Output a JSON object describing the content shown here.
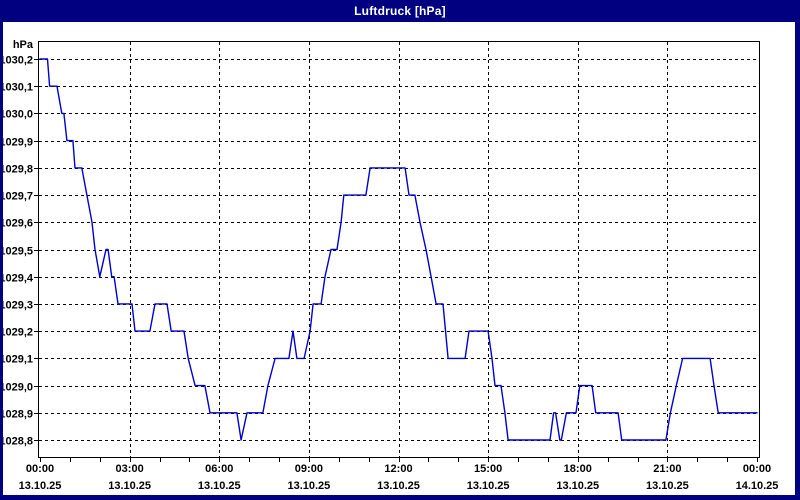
{
  "window": {
    "title": "Luftdruck [hPa]"
  },
  "colors": {
    "window_frame": "#000080",
    "title_text": "#ffffff",
    "plot_background": "#ffffff",
    "axis_frame": "#000000",
    "grid": "#000000",
    "tick_label": "#000000",
    "series_line": "#0000cd"
  },
  "chart_data": {
    "type": "line",
    "title": "Luftdruck [hPa]",
    "ylabel": "hPa",
    "xlabel": "",
    "grid": "dashed",
    "legend_position": "none",
    "ylim": [
      1028.73,
      1030.27
    ],
    "xlim_hours": [
      0,
      24
    ],
    "y_axis": {
      "unit_label": "hPa",
      "tick_values": [
        1030.2,
        1030.1,
        1030.0,
        1029.9,
        1029.8,
        1029.7,
        1029.6,
        1029.5,
        1029.4,
        1029.3,
        1029.2,
        1029.1,
        1029.0,
        1028.9,
        1028.8
      ],
      "tick_labels": [
        "1030,2",
        "1030,1",
        "1030,0",
        "1029,9",
        "1029,8",
        "1029,7",
        "1029,6",
        "1029,5",
        "1029,4",
        "1029,3",
        "1029,2",
        "1029,1",
        "1029,0",
        "1028,9",
        "1028,8"
      ]
    },
    "x_axis": {
      "major_tick_hours": [
        0,
        3,
        6,
        9,
        12,
        15,
        18,
        21,
        24
      ],
      "minor_tick_every_hours": 1,
      "time_labels": [
        "00:00",
        "03:00",
        "06:00",
        "09:00",
        "12:00",
        "15:00",
        "18:00",
        "21:00",
        "00:00"
      ],
      "date_labels": [
        "13.10.25",
        "13.10.25",
        "13.10.25",
        "13.10.25",
        "13.10.25",
        "13.10.25",
        "13.10.25",
        "13.10.25",
        "14.10.25"
      ]
    },
    "series": [
      {
        "name": "Luftdruck",
        "unit": "hPa",
        "points_hours_value": [
          [
            0.0,
            1030.2
          ],
          [
            0.25,
            1030.2
          ],
          [
            0.32,
            1030.1
          ],
          [
            0.57,
            1030.1
          ],
          [
            0.73,
            1030.0
          ],
          [
            0.8,
            1030.0
          ],
          [
            0.9,
            1029.9
          ],
          [
            1.1,
            1029.9
          ],
          [
            1.17,
            1029.8
          ],
          [
            1.4,
            1029.8
          ],
          [
            1.57,
            1029.7
          ],
          [
            1.74,
            1029.6
          ],
          [
            1.84,
            1029.5
          ],
          [
            2.0,
            1029.4
          ],
          [
            2.21,
            1029.5
          ],
          [
            2.28,
            1029.5
          ],
          [
            2.4,
            1029.4
          ],
          [
            2.48,
            1029.4
          ],
          [
            2.61,
            1029.3
          ],
          [
            3.08,
            1029.3
          ],
          [
            3.18,
            1029.2
          ],
          [
            3.68,
            1029.2
          ],
          [
            3.85,
            1029.3
          ],
          [
            4.25,
            1029.3
          ],
          [
            4.39,
            1029.2
          ],
          [
            4.82,
            1029.2
          ],
          [
            4.96,
            1029.1
          ],
          [
            5.19,
            1029.0
          ],
          [
            5.52,
            1029.0
          ],
          [
            5.69,
            1028.9
          ],
          [
            6.59,
            1028.9
          ],
          [
            6.73,
            1028.8
          ],
          [
            6.93,
            1028.9
          ],
          [
            7.46,
            1028.9
          ],
          [
            7.63,
            1029.0
          ],
          [
            7.87,
            1029.1
          ],
          [
            8.33,
            1029.1
          ],
          [
            8.47,
            1029.2
          ],
          [
            8.6,
            1029.1
          ],
          [
            8.84,
            1029.1
          ],
          [
            9.04,
            1029.2
          ],
          [
            9.14,
            1029.3
          ],
          [
            9.41,
            1029.3
          ],
          [
            9.54,
            1029.4
          ],
          [
            9.74,
            1029.5
          ],
          [
            9.94,
            1029.5
          ],
          [
            10.08,
            1029.6
          ],
          [
            10.17,
            1029.7
          ],
          [
            10.91,
            1029.7
          ],
          [
            11.05,
            1029.8
          ],
          [
            12.22,
            1029.8
          ],
          [
            12.35,
            1029.7
          ],
          [
            12.55,
            1029.7
          ],
          [
            12.72,
            1029.6
          ],
          [
            12.92,
            1029.5
          ],
          [
            13.09,
            1029.4
          ],
          [
            13.26,
            1029.3
          ],
          [
            13.49,
            1029.3
          ],
          [
            13.66,
            1029.1
          ],
          [
            14.23,
            1029.1
          ],
          [
            14.36,
            1029.2
          ],
          [
            15.0,
            1029.2
          ],
          [
            15.13,
            1029.1
          ],
          [
            15.23,
            1029.0
          ],
          [
            15.43,
            1029.0
          ],
          [
            15.56,
            1028.9
          ],
          [
            15.67,
            1028.8
          ],
          [
            17.07,
            1028.8
          ],
          [
            17.19,
            1028.9
          ],
          [
            17.26,
            1028.9
          ],
          [
            17.4,
            1028.8
          ],
          [
            17.45,
            1028.8
          ],
          [
            17.62,
            1028.9
          ],
          [
            17.94,
            1028.9
          ],
          [
            18.07,
            1029.0
          ],
          [
            18.48,
            1029.0
          ],
          [
            18.6,
            1028.9
          ],
          [
            19.35,
            1028.9
          ],
          [
            19.47,
            1028.8
          ],
          [
            20.95,
            1028.8
          ],
          [
            21.1,
            1028.9
          ],
          [
            21.3,
            1029.0
          ],
          [
            21.51,
            1029.1
          ],
          [
            22.43,
            1029.1
          ],
          [
            22.56,
            1029.0
          ],
          [
            22.7,
            1028.9
          ],
          [
            24.0,
            1028.9
          ]
        ]
      }
    ]
  }
}
